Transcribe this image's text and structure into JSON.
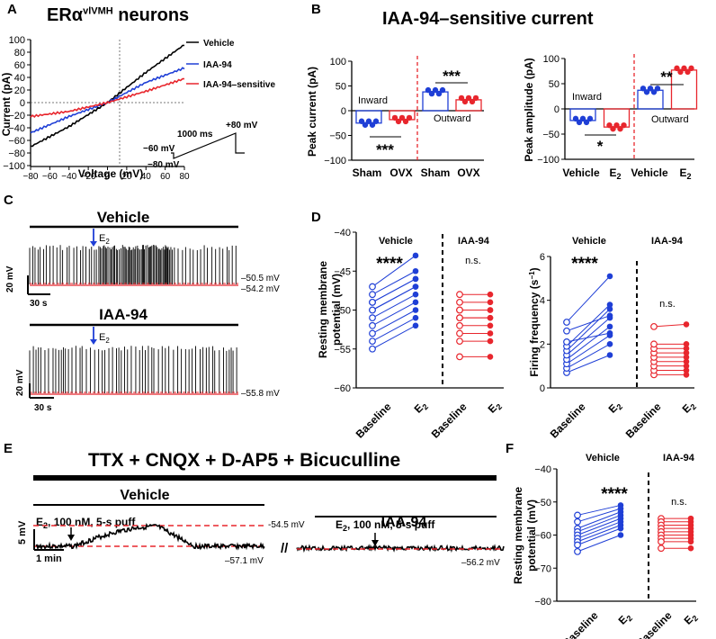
{
  "colors": {
    "black": "#000000",
    "blue": "#1f3fd6",
    "red": "#e8262d",
    "lightblue": "#5a78ff"
  },
  "panelA": {
    "letter": "A",
    "title": "ERα",
    "title_sup": "vlVMH",
    "title_rest": " neurons",
    "ylabel": "Current (pA)",
    "xlabel": "Voltage (mV)",
    "yticks": [
      "100",
      "80",
      "60",
      "40",
      "20",
      "0",
      "−20",
      "−40",
      "−60",
      "−80",
      "−100"
    ],
    "xticks": [
      "−80",
      "−60",
      "−40",
      "−20",
      "0",
      "20",
      "40",
      "60",
      "80"
    ],
    "legend": [
      "Vehicle",
      "IAA-94",
      "IAA-94–sensitive"
    ],
    "protocol": {
      "top": "+80 mV",
      "dur": "1000 ms",
      "hold": "−60 mV",
      "start": "−80 mV"
    }
  },
  "panelB": {
    "letter": "B",
    "title": "IAA-94–sensitive current",
    "left": {
      "ylabel": "Peak current (pA)",
      "yticks": [
        "100",
        "50",
        "0",
        "−50",
        "−100"
      ],
      "xticks": [
        "Sham",
        "OVX",
        "Sham",
        "OVX"
      ],
      "inward": "Inward",
      "outward": "Outward",
      "sig_in": "***",
      "sig_out": "***",
      "chart_data": {
        "type": "bar",
        "categories": [
          "Sham inward",
          "OVX inward",
          "Sham outward",
          "OVX outward"
        ],
        "values": [
          -25,
          -18,
          38,
          22
        ],
        "ylim": [
          -100,
          100
        ]
      }
    },
    "right": {
      "ylabel": "Peak amplitude (pA)",
      "yticks": [
        "100",
        "50",
        "0",
        "−50",
        "−100"
      ],
      "xticks": [
        "Vehicle",
        "E",
        "Vehicle",
        "E"
      ],
      "sub": "2",
      "inward": "Inward",
      "outward": "Outward",
      "sig_in": "*",
      "sig_out": "**",
      "chart_data": {
        "type": "bar",
        "categories": [
          "Vehicle inward",
          "E2 inward",
          "Vehicle outward",
          "E2 outward"
        ],
        "values": [
          -23,
          -36,
          37,
          77
        ],
        "ylim": [
          -100,
          100
        ]
      }
    }
  },
  "panelC": {
    "letter": "C",
    "vehicle": "Vehicle",
    "iaa": "IAA-94",
    "e2": "E",
    "e2sub": "2",
    "scale_v": "20 mV",
    "scale_t": "30 s",
    "v1": "–50.5 mV",
    "v2": "–54.2 mV",
    "v3": "–55.8 mV"
  },
  "panelD": {
    "letter": "D",
    "left": {
      "ylabel1": "Resting membrane",
      "ylabel2": "potential (mV)",
      "yticks": [
        "−40",
        "−45",
        "−50",
        "−55",
        "−60"
      ],
      "group1": "Vehicle",
      "group2": "IAA-94",
      "sig": "****",
      "ns": "n.s.",
      "xticks": [
        "Baseline",
        "E",
        "Baseline",
        "E"
      ],
      "sub": "2"
    },
    "right": {
      "ylabel": "Firing frequency (s",
      "ylabel_sup": "−1",
      "ylabel_end": ")",
      "yticks": [
        "6",
        "4",
        "2",
        "0"
      ],
      "group1": "Vehicle",
      "group2": "IAA-94",
      "sig": "****",
      "ns": "n.s.",
      "xticks": [
        "Baseline",
        "E",
        "Baseline",
        "E"
      ],
      "sub": "2"
    }
  },
  "panelE": {
    "letter": "E",
    "title": "TTX + CNQX + D-AP5 + Bicuculline",
    "vehicle": "Vehicle",
    "iaa": "IAA-94",
    "puff1": "E",
    "puffsub": "2",
    "puff2": ", 100 nM,  5-s puff",
    "scale_v": "5 mV",
    "scale_t": "1 min",
    "v1": "-54.5 mV",
    "v2": "–57.1 mV",
    "v3": "–56.2 mV",
    "break": "//"
  },
  "panelF": {
    "letter": "F",
    "ylabel1": "Resting membrane",
    "ylabel2": "potential (mV)",
    "yticks": [
      "−40",
      "−50",
      "−60",
      "−70",
      "−80"
    ],
    "group1": "Vehicle",
    "group2": "IAA-94",
    "sig": "****",
    "ns": "n.s.",
    "xticks": [
      "Baseline",
      "E",
      "Baseline",
      "E"
    ],
    "sub": "2"
  },
  "chart_data": [
    {
      "type": "line",
      "title": "ERα vlVMH neurons",
      "xlabel": "Voltage (mV)",
      "ylabel": "Current (pA)",
      "xlim": [
        -80,
        80
      ],
      "ylim": [
        -100,
        100
      ],
      "series": [
        {
          "name": "Vehicle",
          "x": [
            -80,
            -40,
            0,
            40,
            80
          ],
          "y": [
            -70,
            -38,
            0,
            48,
            92
          ]
        },
        {
          "name": "IAA-94",
          "x": [
            -80,
            -40,
            0,
            40,
            80
          ],
          "y": [
            -48,
            -22,
            0,
            32,
            55
          ]
        },
        {
          "name": "IAA-94–sensitive",
          "x": [
            -80,
            -40,
            0,
            40,
            80
          ],
          "y": [
            -22,
            -14,
            0,
            18,
            38
          ]
        }
      ]
    },
    {
      "type": "scatter",
      "title": "Resting membrane potential (mV)",
      "categories": [
        "Baseline",
        "E2",
        "Baseline",
        "E2"
      ],
      "series": [
        {
          "name": "Vehicle baseline",
          "values": [
            -47,
            -48,
            -49,
            -50,
            -51,
            -52,
            -53,
            -54,
            -55,
            -50,
            -49
          ]
        },
        {
          "name": "Vehicle E2",
          "values": [
            -43,
            -45,
            -46,
            -47,
            -48,
            -49,
            -50,
            -51,
            -52,
            -47,
            -46
          ]
        },
        {
          "name": "IAA-94 baseline",
          "values": [
            -48,
            -49,
            -50,
            -51,
            -52,
            -53,
            -54,
            -56,
            -50,
            -51
          ]
        },
        {
          "name": "IAA-94 E2",
          "values": [
            -48,
            -49,
            -50,
            -51,
            -52,
            -53,
            -54,
            -56,
            -50,
            -51
          ]
        }
      ]
    },
    {
      "type": "scatter",
      "title": "Firing frequency (s−1)",
      "categories": [
        "Baseline",
        "E2",
        "Baseline",
        "E2"
      ],
      "series": [
        {
          "name": "Vehicle baseline",
          "values": [
            0.7,
            0.9,
            1.1,
            1.3,
            1.5,
            1.7,
            1.9,
            2.1,
            2.6,
            3.0
          ]
        },
        {
          "name": "Vehicle E2",
          "values": [
            1.5,
            2.0,
            2.4,
            2.8,
            3.2,
            3.6,
            3.8,
            2.5,
            3.3,
            5.1
          ]
        },
        {
          "name": "IAA-94 baseline",
          "values": [
            0.6,
            0.8,
            1.0,
            1.2,
            1.4,
            1.6,
            1.8,
            2.0,
            2.8
          ]
        },
        {
          "name": "IAA-94 E2",
          "values": [
            0.6,
            0.8,
            1.0,
            1.2,
            1.4,
            1.6,
            1.8,
            2.0,
            2.9
          ]
        }
      ]
    },
    {
      "type": "scatter",
      "title": "Resting membrane potential (mV) — TTX",
      "categories": [
        "Baseline",
        "E2",
        "Baseline",
        "E2"
      ],
      "series": [
        {
          "name": "Vehicle baseline",
          "values": [
            -54,
            -56,
            -58,
            -59,
            -60,
            -61,
            -62,
            -63,
            -65
          ]
        },
        {
          "name": "Vehicle E2",
          "values": [
            -51,
            -52,
            -53,
            -54,
            -55,
            -56,
            -57,
            -58,
            -60
          ]
        },
        {
          "name": "IAA-94 baseline",
          "values": [
            -55,
            -56,
            -57,
            -58,
            -59,
            -60,
            -61,
            -62,
            -64
          ]
        },
        {
          "name": "IAA-94 E2",
          "values": [
            -55,
            -56,
            -57,
            -58,
            -59,
            -60,
            -61,
            -62,
            -64
          ]
        }
      ]
    }
  ]
}
